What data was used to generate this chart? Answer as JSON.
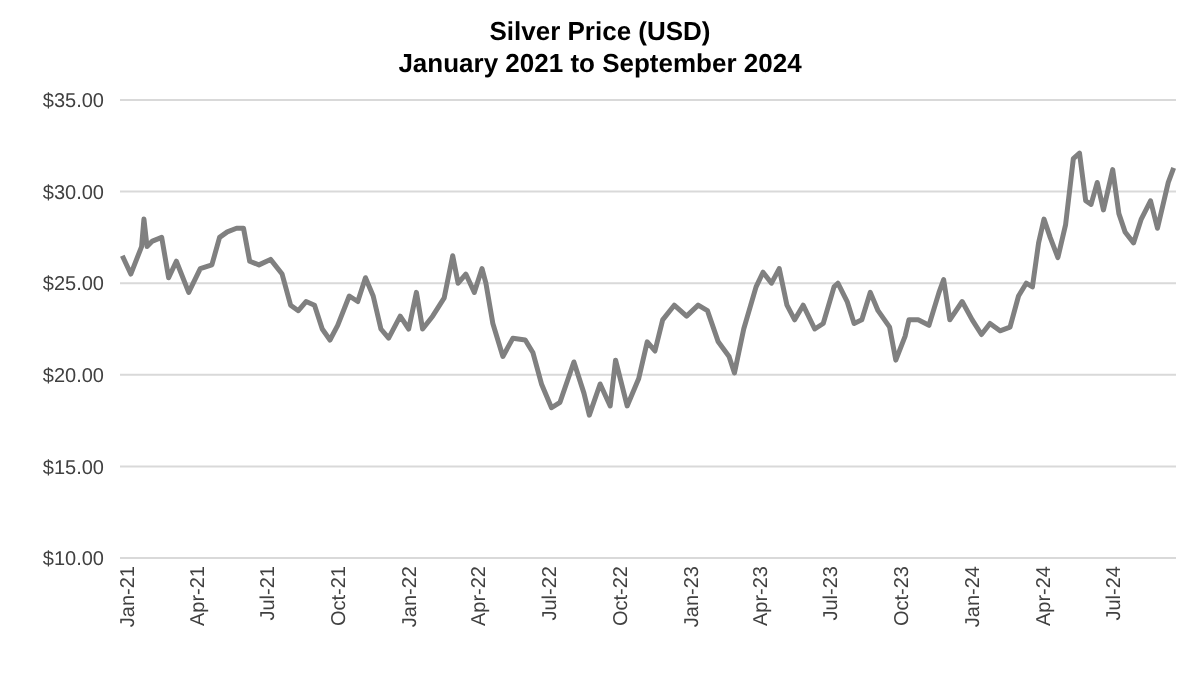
{
  "chart_data": {
    "type": "line",
    "title": "Silver Price (USD)",
    "subtitle": "January 2021 to September 2024",
    "x": [
      "2021-01-04",
      "2021-01-15",
      "2021-01-29",
      "2021-02-01",
      "2021-02-05",
      "2021-02-12",
      "2021-02-24",
      "2021-03-05",
      "2021-03-15",
      "2021-03-31",
      "2021-04-15",
      "2021-04-30",
      "2021-05-10",
      "2021-05-20",
      "2021-06-01",
      "2021-06-10",
      "2021-06-18",
      "2021-06-30",
      "2021-07-15",
      "2021-07-30",
      "2021-08-10",
      "2021-08-20",
      "2021-08-30",
      "2021-09-10",
      "2021-09-20",
      "2021-09-30",
      "2021-10-10",
      "2021-10-25",
      "2021-11-05",
      "2021-11-15",
      "2021-11-25",
      "2021-12-05",
      "2021-12-15",
      "2021-12-30",
      "2022-01-10",
      "2022-01-20",
      "2022-01-28",
      "2022-02-10",
      "2022-02-25",
      "2022-03-08",
      "2022-03-15",
      "2022-03-25",
      "2022-04-05",
      "2022-04-15",
      "2022-04-20",
      "2022-04-29",
      "2022-05-12",
      "2022-05-25",
      "2022-06-10",
      "2022-06-20",
      "2022-07-01",
      "2022-07-14",
      "2022-07-25",
      "2022-08-12",
      "2022-08-25",
      "2022-09-01",
      "2022-09-15",
      "2022-09-28",
      "2022-10-05",
      "2022-10-20",
      "2022-11-04",
      "2022-11-15",
      "2022-11-25",
      "2022-12-05",
      "2022-12-20",
      "2023-01-05",
      "2023-01-20",
      "2023-02-01",
      "2023-02-15",
      "2023-03-01",
      "2023-03-08",
      "2023-03-20",
      "2023-04-05",
      "2023-04-14",
      "2023-04-25",
      "2023-05-05",
      "2023-05-15",
      "2023-05-25",
      "2023-06-05",
      "2023-06-20",
      "2023-07-01",
      "2023-07-15",
      "2023-07-20",
      "2023-08-01",
      "2023-08-10",
      "2023-08-20",
      "2023-08-31",
      "2023-09-10",
      "2023-09-25",
      "2023-10-03",
      "2023-10-15",
      "2023-10-20",
      "2023-11-01",
      "2023-11-15",
      "2023-11-28",
      "2023-12-04",
      "2023-12-12",
      "2023-12-28",
      "2024-01-10",
      "2024-01-22",
      "2024-02-02",
      "2024-02-15",
      "2024-02-28",
      "2024-03-10",
      "2024-03-20",
      "2024-03-28",
      "2024-04-05",
      "2024-04-12",
      "2024-04-20",
      "2024-04-30",
      "2024-05-10",
      "2024-05-20",
      "2024-05-28",
      "2024-06-05",
      "2024-06-12",
      "2024-06-20",
      "2024-06-28",
      "2024-07-10",
      "2024-07-18",
      "2024-07-26",
      "2024-08-06",
      "2024-08-16",
      "2024-08-28",
      "2024-09-06",
      "2024-09-20",
      "2024-09-27"
    ],
    "series": [
      {
        "color": "#808080",
        "values": [
          26.5,
          25.5,
          27.0,
          28.5,
          27.0,
          27.3,
          27.5,
          25.3,
          26.2,
          24.5,
          25.8,
          26.0,
          27.5,
          27.8,
          28.0,
          28.0,
          26.2,
          26.0,
          26.3,
          25.5,
          23.8,
          23.5,
          24.0,
          23.8,
          22.5,
          21.9,
          22.7,
          24.3,
          24.0,
          25.3,
          24.3,
          22.5,
          22.0,
          23.2,
          22.5,
          24.5,
          22.5,
          23.2,
          24.2,
          26.5,
          25.0,
          25.5,
          24.5,
          25.8,
          25.0,
          22.8,
          21.0,
          22.0,
          21.9,
          21.2,
          19.5,
          18.2,
          18.5,
          20.7,
          19.0,
          17.8,
          19.5,
          18.3,
          20.8,
          18.3,
          19.8,
          21.8,
          21.3,
          23.0,
          23.8,
          23.2,
          23.8,
          23.5,
          21.8,
          21.0,
          20.1,
          22.5,
          24.8,
          25.6,
          25.0,
          25.8,
          23.8,
          23.0,
          23.8,
          22.5,
          22.8,
          24.8,
          25.0,
          24.0,
          22.8,
          23.0,
          24.5,
          23.5,
          22.6,
          20.8,
          22.1,
          23.0,
          23.0,
          22.7,
          24.5,
          25.2,
          23.0,
          24.0,
          23.0,
          22.2,
          22.8,
          22.4,
          22.6,
          24.3,
          25.0,
          24.8,
          27.2,
          28.5,
          27.5,
          26.4,
          28.2,
          31.8,
          32.1,
          29.5,
          29.3,
          30.5,
          29.0,
          31.2,
          28.8,
          27.8,
          27.2,
          28.5,
          29.5,
          28.0,
          30.5,
          31.3
        ]
      }
    ],
    "xlim": [
      "2021-01-01",
      "2024-09-30"
    ],
    "xticks": [
      {
        "value": "2021-01-01",
        "label": "Jan-21"
      },
      {
        "value": "2021-04-01",
        "label": "Apr-21"
      },
      {
        "value": "2021-07-01",
        "label": "Jul-21"
      },
      {
        "value": "2021-10-01",
        "label": "Oct-21"
      },
      {
        "value": "2022-01-01",
        "label": "Jan-22"
      },
      {
        "value": "2022-04-01",
        "label": "Apr-22"
      },
      {
        "value": "2022-07-01",
        "label": "Jul-22"
      },
      {
        "value": "2022-10-01",
        "label": "Oct-22"
      },
      {
        "value": "2023-01-01",
        "label": "Jan-23"
      },
      {
        "value": "2023-04-01",
        "label": "Apr-23"
      },
      {
        "value": "2023-07-01",
        "label": "Jul-23"
      },
      {
        "value": "2023-10-01",
        "label": "Oct-23"
      },
      {
        "value": "2024-01-01",
        "label": "Jan-24"
      },
      {
        "value": "2024-04-01",
        "label": "Apr-24"
      },
      {
        "value": "2024-07-01",
        "label": "Jul-24"
      }
    ],
    "ylim": [
      10,
      35
    ],
    "yticks": [
      {
        "value": 10,
        "label": "$10.00"
      },
      {
        "value": 15,
        "label": "$15.00"
      },
      {
        "value": 20,
        "label": "$20.00"
      },
      {
        "value": 25,
        "label": "$25.00"
      },
      {
        "value": 30,
        "label": "$30.00"
      },
      {
        "value": 35,
        "label": "$35.00"
      }
    ],
    "grid": "y",
    "legend": false,
    "marker": "none",
    "line_style": "solid"
  }
}
